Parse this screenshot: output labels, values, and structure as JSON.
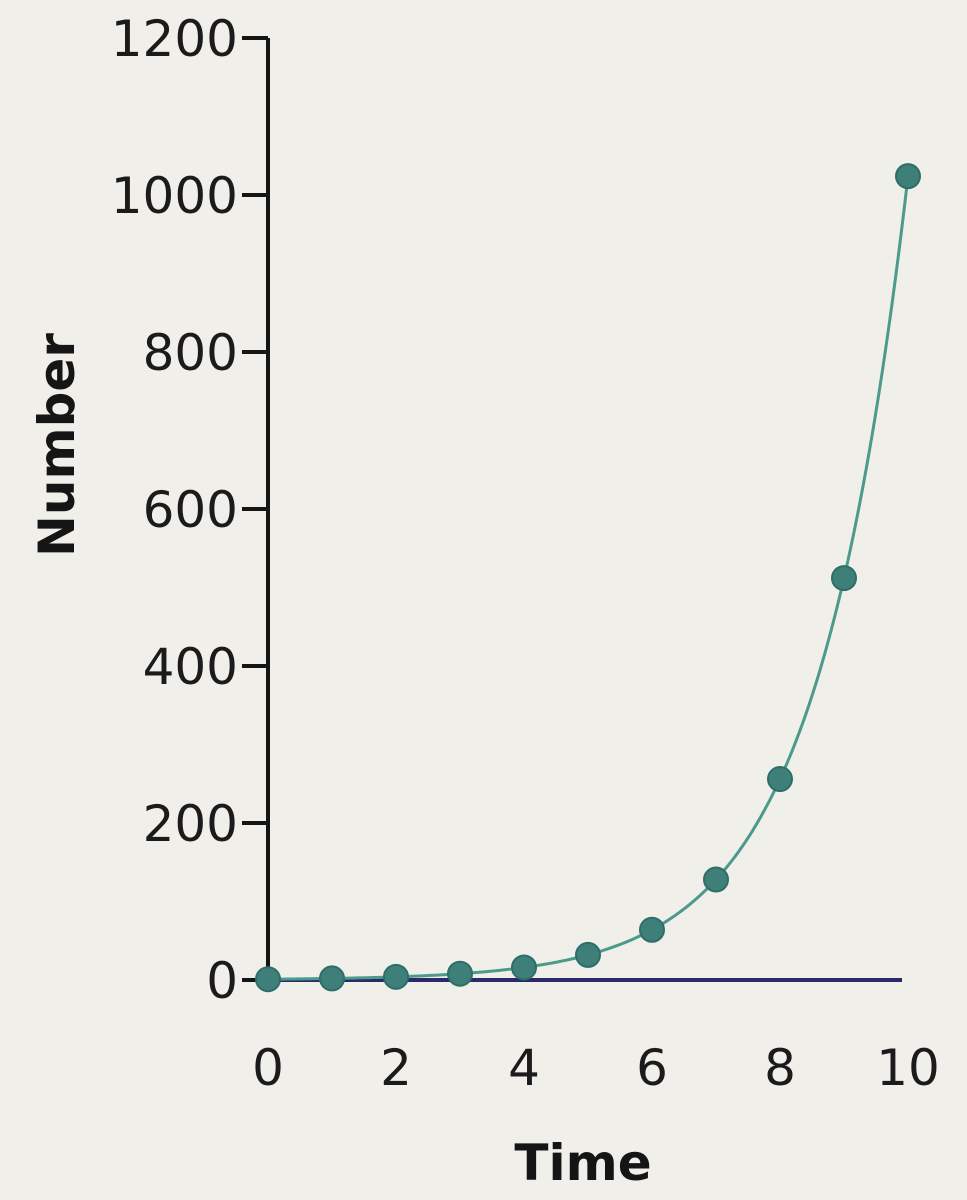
{
  "chart_data": {
    "type": "line",
    "title": "",
    "xlabel": "Time",
    "ylabel": "Number",
    "xlim": [
      0,
      10
    ],
    "ylim": [
      0,
      1200
    ],
    "x_ticks": [
      "0",
      "2",
      "4",
      "6",
      "8",
      "10"
    ],
    "y_ticks": [
      "0",
      "200",
      "400",
      "600",
      "800",
      "1000",
      "1200"
    ],
    "grid": false,
    "legend": "none",
    "series": [
      {
        "x": [
          0,
          1,
          2,
          3,
          4,
          5,
          6,
          7,
          8,
          9,
          10
        ],
        "values": [
          1,
          2,
          4,
          8,
          16,
          32,
          64,
          128,
          256,
          512,
          1024
        ],
        "color": "#3e7f7a",
        "curve_color": "#4b9a8c"
      }
    ],
    "axis_color": "#151515",
    "baseline_color": "#2a2a6a"
  }
}
